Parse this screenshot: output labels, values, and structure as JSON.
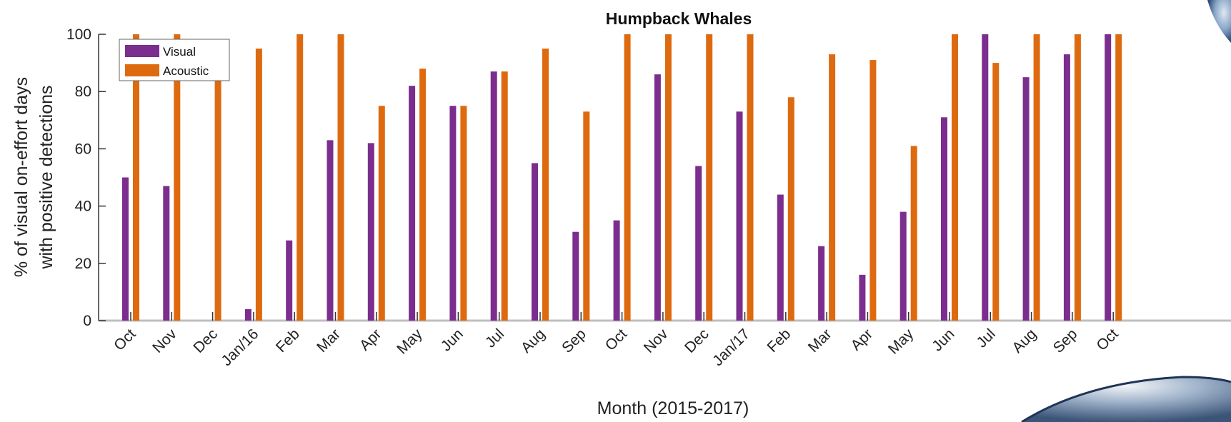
{
  "chart_data": {
    "type": "bar",
    "title": "Humpback Whales",
    "xlabel": "Month (2015-2017)",
    "ylabel_lines": [
      "% of visual on-effort days",
      "with positive detections"
    ],
    "ylim": [
      0,
      100
    ],
    "yticks": [
      0,
      20,
      40,
      60,
      80,
      100
    ],
    "categories": [
      "Oct",
      "Nov",
      "Dec",
      "Jan/16",
      "Feb",
      "Mar",
      "Apr",
      "May",
      "Jun",
      "Jul",
      "Aug",
      "Sep",
      "Oct",
      "Nov",
      "Dec",
      "Jan/17",
      "Feb",
      "Mar",
      "Apr",
      "May",
      "Jun",
      "Jul",
      "Aug",
      "Sep",
      "Oct"
    ],
    "series": [
      {
        "name": "Visual",
        "color": "#7b2e8e",
        "values": [
          50,
          47,
          0,
          4,
          28,
          63,
          62,
          82,
          75,
          87,
          55,
          31,
          35,
          86,
          54,
          73,
          44,
          26,
          16,
          38,
          71,
          100,
          85,
          93,
          100
        ]
      },
      {
        "name": "Acoustic",
        "color": "#de6a10",
        "values": [
          100,
          100,
          92,
          95,
          100,
          100,
          75,
          88,
          75,
          87,
          95,
          73,
          100,
          100,
          100,
          100,
          78,
          93,
          91,
          61,
          100,
          90,
          100,
          100,
          100
        ]
      }
    ],
    "legend_position": "top-left",
    "grid": false
  }
}
